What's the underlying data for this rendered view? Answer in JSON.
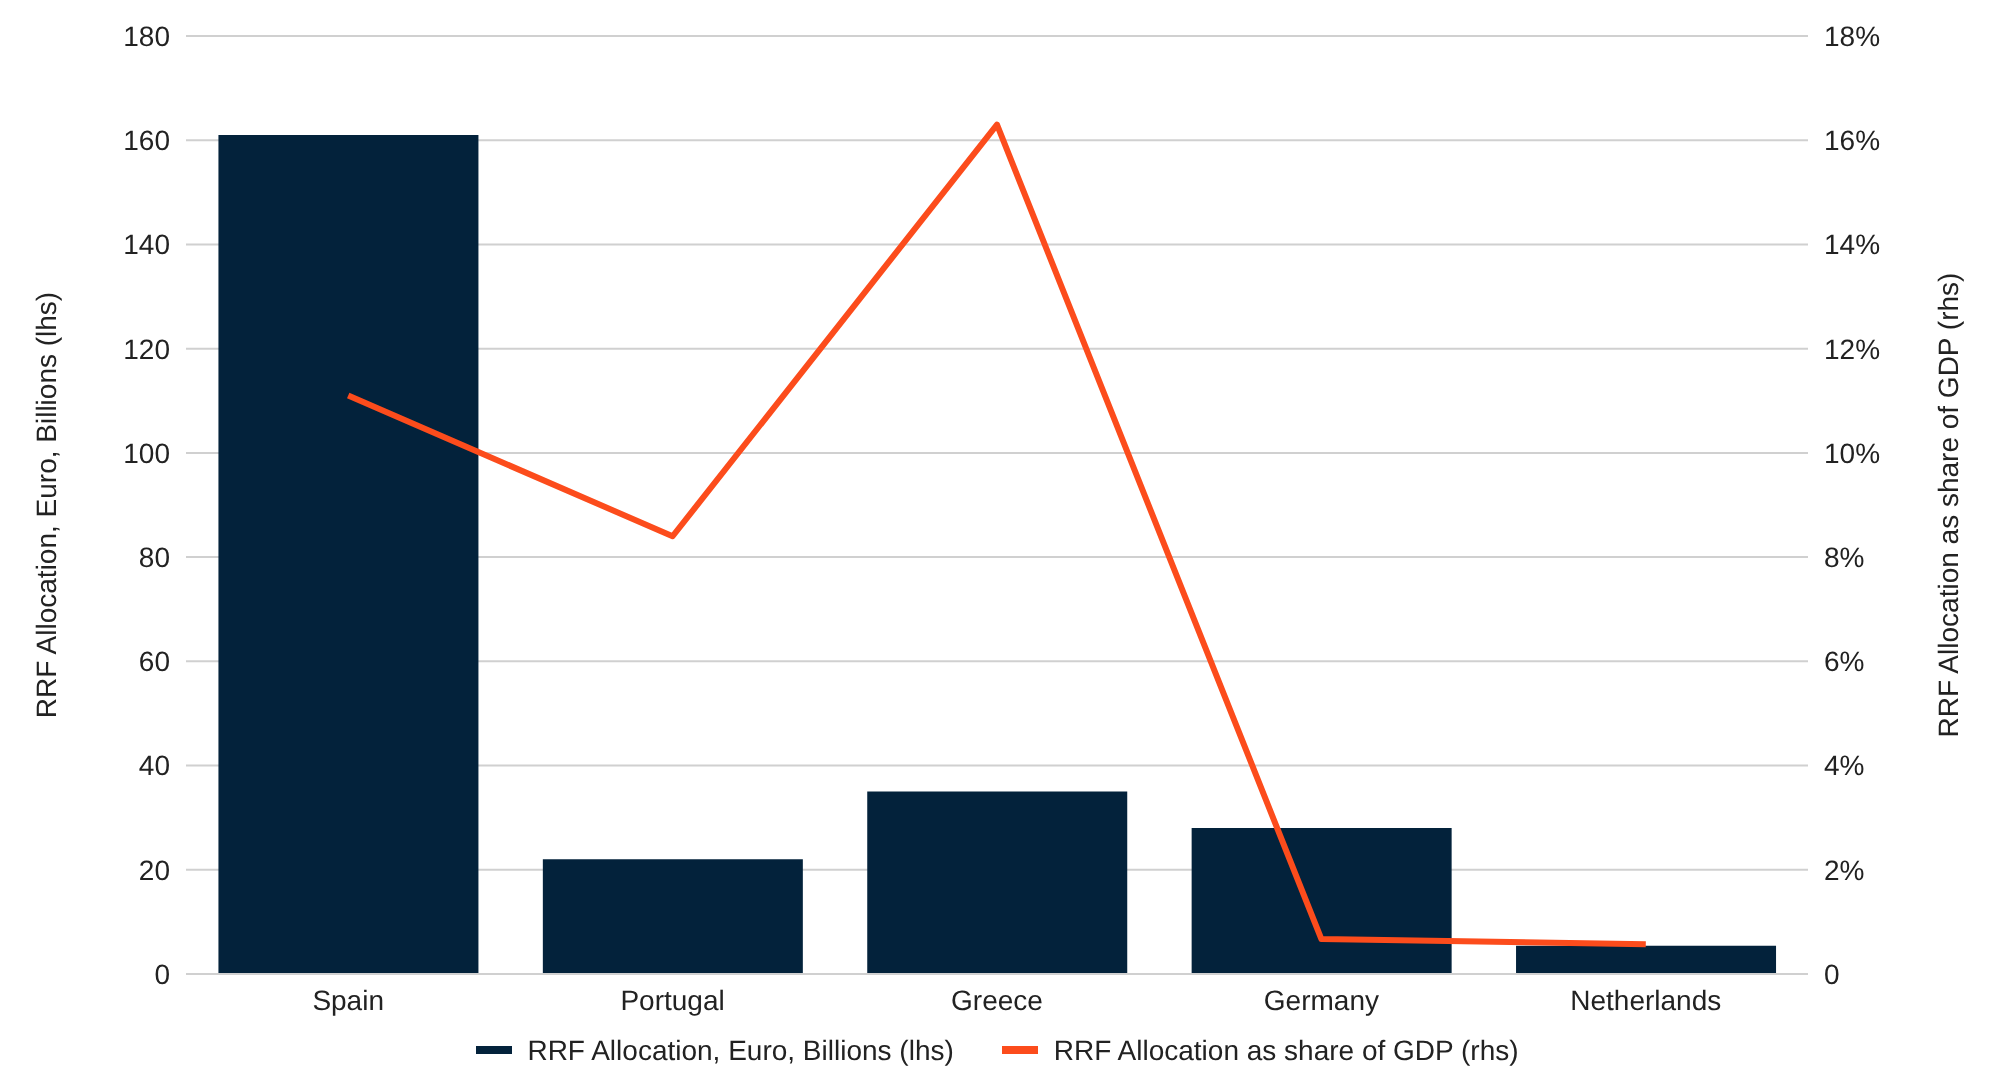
{
  "chart_data": {
    "type": "bar",
    "categories": [
      "Spain",
      "Portugal",
      "Greece",
      "Germany",
      "Netherlands"
    ],
    "series": [
      {
        "name": "RRF Allocation, Euro, Billions (lhs)",
        "color": "#03223b",
        "values": [
          161,
          22,
          35,
          28,
          5.4
        ]
      },
      {
        "name": "RRF Allocation as share of GDP (rhs)",
        "type": "line",
        "axis": "y2",
        "color": "#fc4c1c",
        "values": [
          11.1,
          8.4,
          16.3,
          0.67,
          0.57
        ]
      }
    ],
    "ylabel": "RRF Allocation, Euro, Billions (lhs)",
    "y2label": "RRF Allocation as share of GDP (rhs)",
    "ylim": [
      0,
      180
    ],
    "yticks": [
      0,
      20,
      40,
      60,
      80,
      100,
      120,
      140,
      160,
      180
    ],
    "y2lim": [
      0,
      18
    ],
    "y2ticks": [
      0,
      {
        "value": 2,
        "label": "2%"
      },
      {
        "value": 4,
        "label": "4%"
      },
      {
        "value": 6,
        "label": "6%"
      },
      {
        "value": 8,
        "label": "8%"
      },
      {
        "value": 10,
        "label": "10%"
      },
      {
        "value": 12,
        "label": "12%"
      },
      {
        "value": 14,
        "label": "14%"
      },
      {
        "value": 16,
        "label": "16%"
      },
      {
        "value": 18,
        "label": "18%"
      }
    ],
    "grid": "y",
    "legend": "bottom",
    "marker": "none"
  }
}
